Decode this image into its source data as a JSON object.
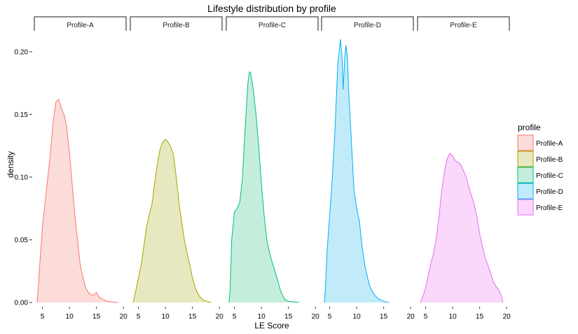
{
  "chart_data": {
    "type": "area",
    "title": "Lifestyle distribution by profile",
    "xlabel": "LE Score",
    "ylabel": "density",
    "facet_var": "profile",
    "xlim": [
      3.5,
      20.5
    ],
    "ylim": [
      0,
      0.215
    ],
    "x_ticks": [
      5,
      10,
      15,
      20
    ],
    "y_ticks": [
      0.0,
      0.05,
      0.1,
      0.15,
      0.2
    ],
    "y_tick_labels": [
      "0.00",
      "0.05",
      "0.10",
      "0.15",
      "0.20"
    ],
    "legend": {
      "title": "profile",
      "position": "right"
    },
    "series": [
      {
        "name": "Profile-A",
        "color": "#F8766D",
        "fill": "#FCDCD9",
        "points": [
          [
            4.0,
            0.0
          ],
          [
            4.2,
            0.01
          ],
          [
            4.5,
            0.03
          ],
          [
            5.0,
            0.06
          ],
          [
            5.5,
            0.08
          ],
          [
            6.0,
            0.1
          ],
          [
            6.5,
            0.12
          ],
          [
            7.0,
            0.145
          ],
          [
            7.5,
            0.16
          ],
          [
            8.0,
            0.162
          ],
          [
            8.5,
            0.155
          ],
          [
            9.0,
            0.15
          ],
          [
            9.5,
            0.14
          ],
          [
            10.0,
            0.12
          ],
          [
            10.5,
            0.095
          ],
          [
            11.0,
            0.07
          ],
          [
            11.5,
            0.05
          ],
          [
            12.0,
            0.03
          ],
          [
            12.5,
            0.02
          ],
          [
            13.0,
            0.012
          ],
          [
            13.5,
            0.008
          ],
          [
            14.0,
            0.006
          ],
          [
            14.5,
            0.006
          ],
          [
            15.0,
            0.008
          ],
          [
            15.5,
            0.004
          ],
          [
            16.0,
            0.003
          ],
          [
            16.5,
            0.002
          ],
          [
            17.0,
            0.001
          ],
          [
            18.0,
            0.0005
          ],
          [
            19.0,
            0.0
          ]
        ]
      },
      {
        "name": "Profile-B",
        "color": "#A3A500",
        "fill": "#E8E8C0",
        "points": [
          [
            4.0,
            0.0
          ],
          [
            4.3,
            0.005
          ],
          [
            5.0,
            0.02
          ],
          [
            5.5,
            0.03
          ],
          [
            6.0,
            0.045
          ],
          [
            6.5,
            0.06
          ],
          [
            7.0,
            0.07
          ],
          [
            7.5,
            0.078
          ],
          [
            8.0,
            0.095
          ],
          [
            8.5,
            0.11
          ],
          [
            9.0,
            0.122
          ],
          [
            9.5,
            0.128
          ],
          [
            10.0,
            0.13
          ],
          [
            10.5,
            0.128
          ],
          [
            11.0,
            0.124
          ],
          [
            11.5,
            0.118
          ],
          [
            12.0,
            0.1
          ],
          [
            12.5,
            0.08
          ],
          [
            13.0,
            0.065
          ],
          [
            13.5,
            0.05
          ],
          [
            14.0,
            0.04
          ],
          [
            14.5,
            0.03
          ],
          [
            15.0,
            0.02
          ],
          [
            15.5,
            0.012
          ],
          [
            16.0,
            0.007
          ],
          [
            16.5,
            0.004
          ],
          [
            17.0,
            0.002
          ],
          [
            17.5,
            0.001
          ],
          [
            18.5,
            0.0
          ]
        ]
      },
      {
        "name": "Profile-C",
        "color": "#00BF7D",
        "fill": "#C4EEDB",
        "points": [
          [
            4.0,
            0.0
          ],
          [
            4.2,
            0.01
          ],
          [
            4.5,
            0.05
          ],
          [
            5.0,
            0.072
          ],
          [
            5.5,
            0.075
          ],
          [
            6.0,
            0.08
          ],
          [
            6.5,
            0.1
          ],
          [
            7.0,
            0.14
          ],
          [
            7.5,
            0.175
          ],
          [
            7.8,
            0.184
          ],
          [
            8.0,
            0.183
          ],
          [
            8.5,
            0.17
          ],
          [
            9.0,
            0.15
          ],
          [
            9.5,
            0.125
          ],
          [
            10.0,
            0.095
          ],
          [
            10.5,
            0.07
          ],
          [
            11.0,
            0.05
          ],
          [
            11.5,
            0.04
          ],
          [
            12.0,
            0.032
          ],
          [
            12.5,
            0.025
          ],
          [
            13.0,
            0.018
          ],
          [
            13.5,
            0.01
          ],
          [
            14.0,
            0.005
          ],
          [
            14.5,
            0.002
          ],
          [
            15.0,
            0.001
          ],
          [
            16.0,
            0.0005
          ],
          [
            17.0,
            0.0
          ]
        ]
      },
      {
        "name": "Profile-D",
        "color": "#00B0F6",
        "fill": "#C2EBFA",
        "points": [
          [
            4.0,
            0.0
          ],
          [
            4.2,
            0.01
          ],
          [
            4.5,
            0.04
          ],
          [
            5.0,
            0.07
          ],
          [
            5.5,
            0.1
          ],
          [
            6.0,
            0.14
          ],
          [
            6.5,
            0.19
          ],
          [
            7.0,
            0.21
          ],
          [
            7.3,
            0.195
          ],
          [
            7.5,
            0.17
          ],
          [
            7.8,
            0.195
          ],
          [
            8.0,
            0.205
          ],
          [
            8.3,
            0.195
          ],
          [
            8.5,
            0.17
          ],
          [
            9.0,
            0.13
          ],
          [
            9.5,
            0.09
          ],
          [
            10.0,
            0.075
          ],
          [
            10.5,
            0.065
          ],
          [
            11.0,
            0.045
          ],
          [
            11.5,
            0.03
          ],
          [
            12.0,
            0.02
          ],
          [
            12.5,
            0.012
          ],
          [
            13.0,
            0.008
          ],
          [
            13.5,
            0.005
          ],
          [
            14.0,
            0.003
          ],
          [
            15.0,
            0.001
          ],
          [
            16.0,
            0.0
          ]
        ]
      },
      {
        "name": "Profile-E",
        "color": "#E76BF3",
        "fill": "#F9D8FC",
        "points": [
          [
            4.0,
            0.0
          ],
          [
            4.5,
            0.005
          ],
          [
            5.0,
            0.012
          ],
          [
            5.5,
            0.022
          ],
          [
            6.0,
            0.032
          ],
          [
            6.5,
            0.04
          ],
          [
            7.0,
            0.052
          ],
          [
            7.5,
            0.07
          ],
          [
            8.0,
            0.09
          ],
          [
            8.5,
            0.105
          ],
          [
            9.0,
            0.115
          ],
          [
            9.5,
            0.119
          ],
          [
            10.0,
            0.117
          ],
          [
            10.5,
            0.113
          ],
          [
            11.0,
            0.112
          ],
          [
            11.5,
            0.11
          ],
          [
            12.0,
            0.105
          ],
          [
            12.5,
            0.1
          ],
          [
            13.0,
            0.092
          ],
          [
            13.5,
            0.085
          ],
          [
            14.0,
            0.078
          ],
          [
            14.5,
            0.068
          ],
          [
            15.0,
            0.055
          ],
          [
            15.5,
            0.045
          ],
          [
            16.0,
            0.036
          ],
          [
            16.5,
            0.03
          ],
          [
            17.0,
            0.024
          ],
          [
            17.5,
            0.017
          ],
          [
            18.0,
            0.013
          ],
          [
            18.5,
            0.01
          ],
          [
            19.0,
            0.006
          ],
          [
            19.3,
            0.0
          ]
        ]
      }
    ]
  }
}
